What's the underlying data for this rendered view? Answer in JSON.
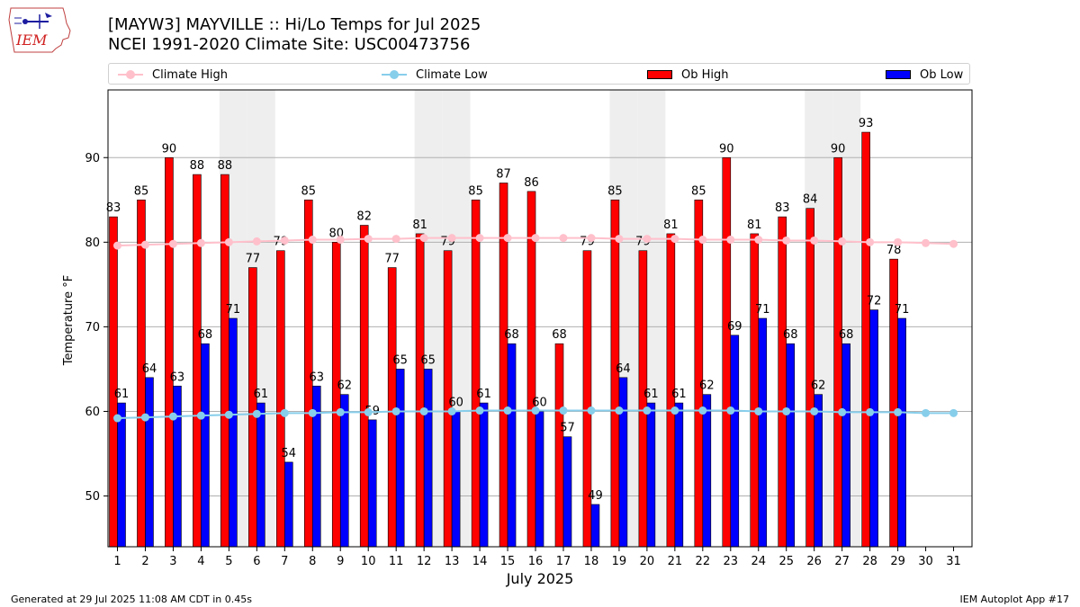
{
  "header": {
    "logo_text": "IEM",
    "title_line1": "[MAYW3] MAYVILLE :: Hi/Lo Temps for Jul 2025",
    "title_line2": "NCEI 1991-2020 Climate Site: USC00473756"
  },
  "legend": {
    "climate_high": "Climate High",
    "climate_low": "Climate Low",
    "ob_high": "Ob High",
    "ob_low": "Ob Low",
    "placement": "top"
  },
  "colors": {
    "ob_high": "#ff0000",
    "ob_low": "#0000ff",
    "climate_high": "#ffc0cb",
    "climate_low": "#87ceeb",
    "weekend_shade": "#eeeeee",
    "grid": "#b0b0b0"
  },
  "chart_data": {
    "type": "bar",
    "xlabel": "July 2025",
    "ylabel": "Temperature °F",
    "ylim": [
      44,
      98
    ],
    "yticks": [
      50,
      60,
      70,
      80,
      90
    ],
    "grid": "horizontal",
    "categories": [
      "1",
      "2",
      "3",
      "4",
      "5",
      "6",
      "7",
      "8",
      "9",
      "10",
      "11",
      "12",
      "13",
      "14",
      "15",
      "16",
      "17",
      "18",
      "19",
      "20",
      "21",
      "22",
      "23",
      "24",
      "25",
      "26",
      "27",
      "28",
      "29",
      "30",
      "31"
    ],
    "shaded_days": [
      5,
      6,
      12,
      13,
      19,
      20,
      26,
      27
    ],
    "series": [
      {
        "name": "Ob High",
        "kind": "bar",
        "values": [
          83,
          85,
          90,
          88,
          88,
          77,
          79,
          85,
          80,
          82,
          77,
          81,
          79,
          85,
          87,
          86,
          68,
          79,
          85,
          79,
          81,
          85,
          90,
          81,
          83,
          84,
          90,
          93,
          78,
          null,
          null
        ]
      },
      {
        "name": "Ob Low",
        "kind": "bar",
        "values": [
          61,
          64,
          63,
          68,
          71,
          61,
          54,
          63,
          62,
          59,
          65,
          65,
          60,
          61,
          68,
          60,
          57,
          49,
          64,
          61,
          61,
          62,
          69,
          71,
          68,
          62,
          68,
          72,
          71,
          null,
          null
        ]
      },
      {
        "name": "Climate High",
        "kind": "line",
        "values": [
          79.6,
          79.7,
          79.8,
          79.9,
          80.0,
          80.1,
          80.2,
          80.3,
          80.3,
          80.4,
          80.4,
          80.5,
          80.5,
          80.5,
          80.5,
          80.5,
          80.5,
          80.5,
          80.4,
          80.4,
          80.4,
          80.3,
          80.3,
          80.3,
          80.2,
          80.2,
          80.1,
          80.0,
          80.0,
          79.9,
          79.8
        ]
      },
      {
        "name": "Climate Low",
        "kind": "line",
        "values": [
          59.2,
          59.3,
          59.4,
          59.5,
          59.6,
          59.7,
          59.8,
          59.8,
          59.9,
          59.9,
          60.0,
          60.0,
          60.0,
          60.1,
          60.1,
          60.1,
          60.1,
          60.1,
          60.1,
          60.1,
          60.1,
          60.1,
          60.1,
          60.0,
          60.0,
          60.0,
          59.9,
          59.9,
          59.9,
          59.8,
          59.8
        ]
      }
    ]
  },
  "footer": {
    "generated": "Generated at 29 Jul 2025 11:08 AM CDT in 0.45s",
    "app": "IEM Autoplot App #17"
  }
}
